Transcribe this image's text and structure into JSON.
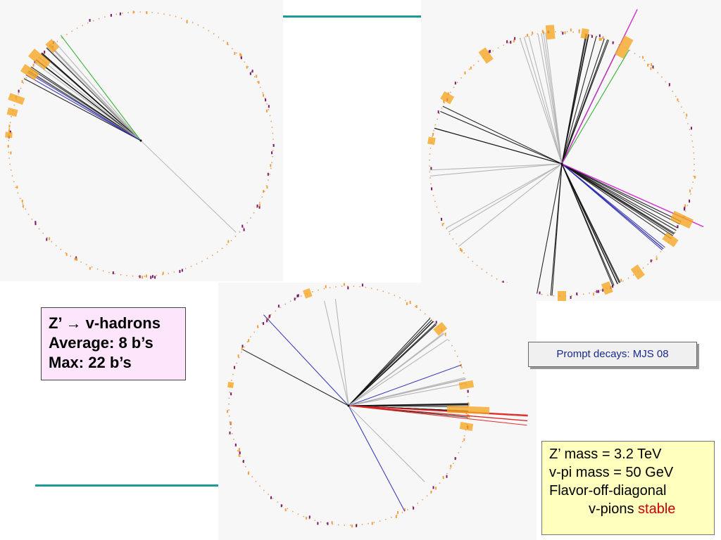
{
  "hadron_box": {
    "line1_prefix": "Z’",
    "line1_arrow": "→",
    "line1_suffix": "v-hadrons",
    "line2": "Average: 8 b’s",
    "line3": "Max: 22 b’s"
  },
  "prompt_box": {
    "label": "Prompt decays: MJS 08"
  },
  "params_box": {
    "line1": "Z’ mass = 3.2 TeV",
    "line2": "v-pi mass = 50 GeV",
    "line3": "Flavor-off-diagonal",
    "line4_prefix": "v-pions",
    "line4_highlight": "stable"
  },
  "colors": {
    "track_black": "#111111",
    "track_grey": "#b0b0b0",
    "track_blue": "#2a2ab0",
    "track_green": "#22aa22",
    "track_red": "#dd2222",
    "track_magenta": "#cc22cc",
    "deposit_orange": "#f5a623",
    "rule_teal": "#1a9a9a",
    "stable_red": "#cc0000"
  }
}
